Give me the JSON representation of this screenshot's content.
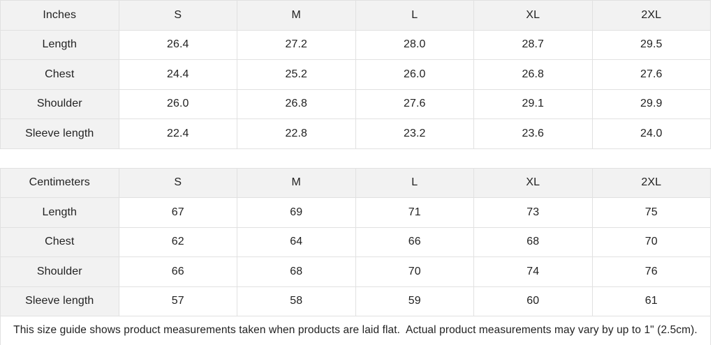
{
  "colors": {
    "header_bg": "#f2f2f2",
    "cell_bg": "#ffffff",
    "border": "#e1e1e1",
    "text": "#222222"
  },
  "size_guide": {
    "tables": [
      {
        "unit_label": "Inches",
        "size_headers": [
          "S",
          "M",
          "L",
          "XL",
          "2XL"
        ],
        "rows": [
          {
            "label": "Length",
            "values": [
              "26.4",
              "27.2",
              "28.0",
              "28.7",
              "29.5"
            ]
          },
          {
            "label": "Chest",
            "values": [
              "24.4",
              "25.2",
              "26.0",
              "26.8",
              "27.6"
            ]
          },
          {
            "label": "Shoulder",
            "values": [
              "26.0",
              "26.8",
              "27.6",
              "29.1",
              "29.9"
            ]
          },
          {
            "label": "Sleeve length",
            "values": [
              "22.4",
              "22.8",
              "23.2",
              "23.6",
              "24.0"
            ]
          }
        ]
      },
      {
        "unit_label": "Centimeters",
        "size_headers": [
          "S",
          "M",
          "L",
          "XL",
          "2XL"
        ],
        "rows": [
          {
            "label": "Length",
            "values": [
              "67",
              "69",
              "71",
              "73",
              "75"
            ]
          },
          {
            "label": "Chest",
            "values": [
              "62",
              "64",
              "66",
              "68",
              "70"
            ]
          },
          {
            "label": "Shoulder",
            "values": [
              "66",
              "68",
              "70",
              "74",
              "76"
            ]
          },
          {
            "label": "Sleeve length",
            "values": [
              "57",
              "58",
              "59",
              "60",
              "61"
            ]
          }
        ]
      }
    ],
    "footer_note": "This size guide shows product measurements taken when products are laid flat.  Actual product measurements may vary by up to 1\" (2.5cm)."
  }
}
